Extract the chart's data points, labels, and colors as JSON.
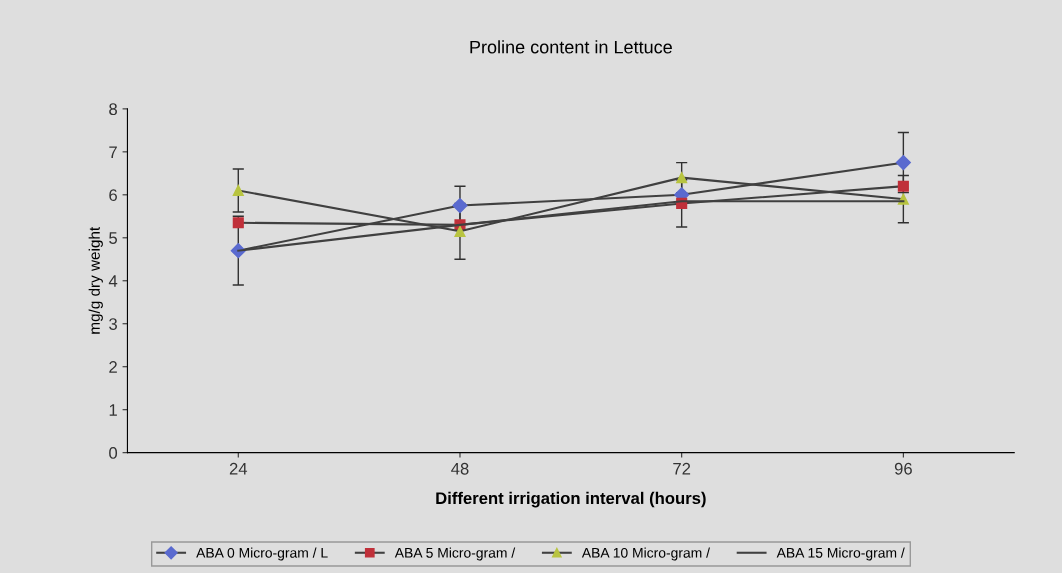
{
  "chart_data": {
    "type": "line",
    "title": "Proline content in Lettuce",
    "xlabel": "Different irrigation interval (hours)",
    "ylabel": "mg/g dry weight",
    "categories": [
      "24",
      "48",
      "72",
      "96"
    ],
    "series": [
      {
        "name": "ABA 0 Micro-gram / L",
        "color": "#5a6acf",
        "marker": "diamond",
        "values": [
          4.7,
          5.75,
          6.0,
          6.75
        ],
        "errors": [
          0.8,
          0.45,
          null,
          0.7
        ]
      },
      {
        "name": "ABA 5 Micro-gram /",
        "color": "#c0303a",
        "marker": "square",
        "values": [
          5.35,
          5.3,
          5.8,
          6.2
        ],
        "errors": [
          null,
          null,
          0.55,
          null
        ]
      },
      {
        "name": "ABA 10 Micro-gram /",
        "color": "#b8c440",
        "marker": "triangle",
        "values": [
          6.1,
          5.15,
          6.4,
          5.9
        ],
        "errors": [
          0.5,
          0.65,
          0.35,
          0.55
        ]
      },
      {
        "name": "ABA 15 Micro-gram /",
        "color": "#404040",
        "marker": "none",
        "values": [
          4.7,
          5.3,
          5.85,
          5.85
        ]
      }
    ],
    "ylim": [
      0,
      8
    ],
    "yticks": [
      0,
      1,
      2,
      3,
      4,
      5,
      6,
      7,
      8
    ],
    "grid": false,
    "legend": "bottom"
  }
}
